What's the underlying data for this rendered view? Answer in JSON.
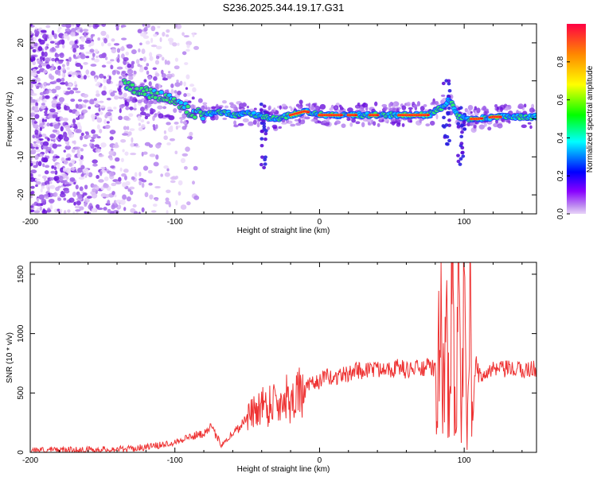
{
  "title": "S236.2025.344.19.17.G31",
  "chart_data": [
    {
      "type": "heatmap",
      "title": "S236.2025.344.19.17.G31",
      "xlabel": "Height of straight line (km)",
      "ylabel": "Frequency (Hz)",
      "xlim": [
        -200,
        150
      ],
      "ylim": [
        -25,
        25
      ],
      "x_ticks": [
        -200,
        -100,
        0,
        100
      ],
      "x_tick_labels": [
        "-200",
        "-100",
        "0",
        "100"
      ],
      "y_ticks": [
        -20,
        -10,
        0,
        10,
        20
      ],
      "y_tick_labels": [
        "-20",
        "-10",
        "0",
        "10",
        "20"
      ],
      "colorbar": {
        "label": "Normalized spectral amplitude",
        "range": [
          0,
          1
        ],
        "ticks": [
          0.0,
          0.2,
          0.4,
          0.6,
          0.8
        ],
        "tick_labels": [
          "0.0",
          "0.2",
          "0.4",
          "0.6",
          "0.8"
        ],
        "colors": [
          "#d8b8f0",
          "#8800ff",
          "#0000ff",
          "#00ffff",
          "#00ff00",
          "#ffff00",
          "#ff8800",
          "#ff0000"
        ]
      },
      "ridge": {
        "x": [
          -135,
          -120,
          -100,
          -90,
          -80,
          -70,
          -60,
          -50,
          -40,
          -30,
          -20,
          -10,
          0,
          20,
          40,
          60,
          75,
          85,
          90,
          95,
          100,
          110,
          120,
          150
        ],
        "y": [
          9,
          7,
          5,
          2,
          1,
          2,
          1,
          1.5,
          0.5,
          0,
          1,
          2,
          1,
          1,
          1,
          1,
          1,
          3,
          5,
          1,
          0,
          0,
          0.5,
          0.5
        ]
      }
    },
    {
      "type": "line",
      "xlabel": "Height of straight line (km)",
      "ylabel": "SNR (10 * v/v)",
      "xlim": [
        -200,
        150
      ],
      "ylim": [
        0,
        1600
      ],
      "x_ticks": [
        -200,
        -100,
        0,
        100
      ],
      "x_tick_labels": [
        "-200",
        "-100",
        "0",
        "100"
      ],
      "y_ticks": [
        0,
        500,
        1000,
        1500
      ],
      "y_tick_labels": [
        "0",
        "500",
        "1000",
        "1500"
      ],
      "color": "#ee3333",
      "series": [
        {
          "name": "SNR",
          "x": [
            -200,
            -175,
            -150,
            -130,
            -120,
            -110,
            -100,
            -90,
            -80,
            -76,
            -72,
            -68,
            -64,
            -60,
            -55,
            -50,
            -45,
            -40,
            -36,
            -32,
            -28,
            -24,
            -20,
            -16,
            -12,
            -8,
            -4,
            0,
            5,
            10,
            15,
            20,
            25,
            30,
            35,
            40,
            45,
            50,
            55,
            60,
            65,
            70,
            75,
            80,
            82,
            84,
            86,
            88,
            90,
            92,
            94,
            96,
            98,
            100,
            102,
            104,
            106,
            108,
            110,
            115,
            120,
            130,
            140,
            150
          ],
          "y": [
            20,
            20,
            25,
            30,
            45,
            60,
            90,
            130,
            160,
            220,
            150,
            70,
            110,
            160,
            220,
            300,
            340,
            420,
            380,
            460,
            380,
            500,
            420,
            540,
            460,
            560,
            580,
            600,
            640,
            620,
            660,
            650,
            700,
            680,
            710,
            690,
            730,
            700,
            720,
            690,
            710,
            700,
            720,
            700,
            710,
            900,
            400,
            1300,
            300,
            1550,
            100,
            1450,
            80,
            1200,
            60,
            1100,
            250,
            800,
            650,
            680,
            690,
            700,
            690,
            710
          ]
        }
      ]
    }
  ]
}
